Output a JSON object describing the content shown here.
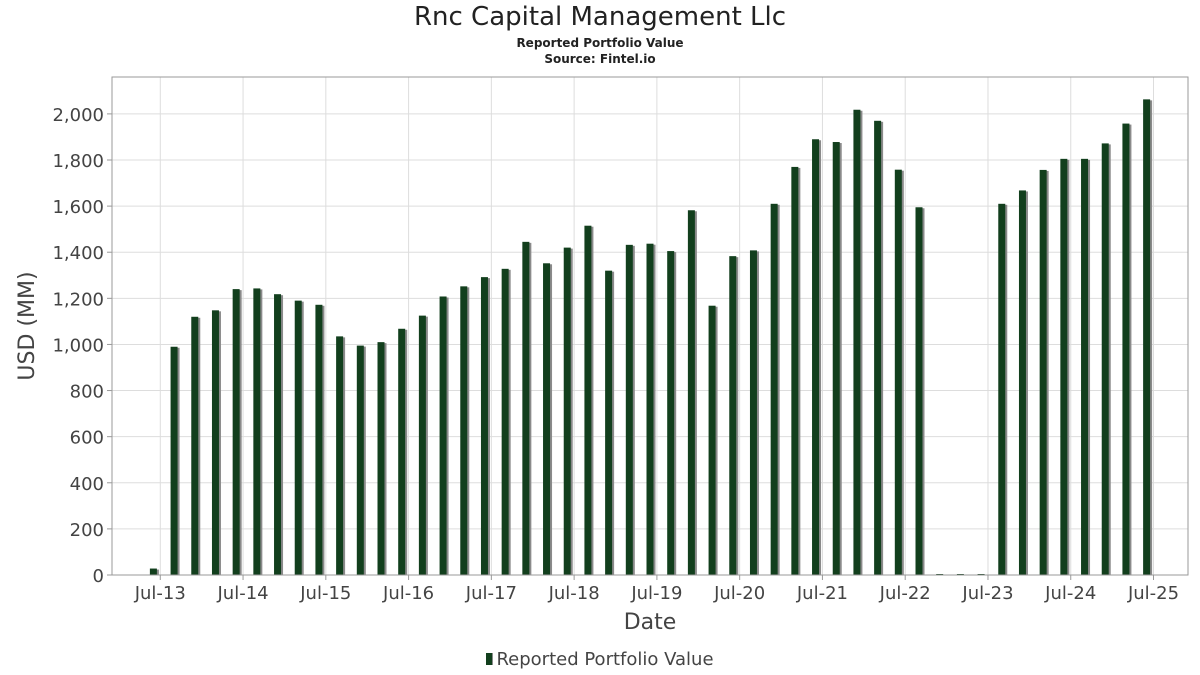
{
  "chart_data": {
    "type": "bar",
    "title": "Rnc Capital Management Llc",
    "subtitle": [
      "Reported Portfolio Value",
      "Source: Fintel.io"
    ],
    "xlabel": "Date",
    "ylabel": "USD (MM)",
    "ylim": [
      0,
      2160
    ],
    "yticks": [
      "0",
      "200",
      "400",
      "600",
      "800",
      "1,000",
      "1,200",
      "1,400",
      "1,600",
      "1,800",
      "2,000"
    ],
    "ytick_values": [
      0,
      200,
      400,
      600,
      800,
      1000,
      1200,
      1400,
      1600,
      1800,
      2000
    ],
    "xticks": [
      "Jul-13",
      "Jul-14",
      "Jul-15",
      "Jul-16",
      "Jul-17",
      "Jul-18",
      "Jul-19",
      "Jul-20",
      "Jul-21",
      "Jul-22",
      "Jul-23",
      "Jul-24",
      "Jul-25"
    ],
    "xtick_dates": [
      "2013-07",
      "2014-07",
      "2015-07",
      "2016-07",
      "2017-07",
      "2018-07",
      "2019-07",
      "2020-07",
      "2021-07",
      "2022-07",
      "2023-07",
      "2024-07",
      "2025-07"
    ],
    "x_range": [
      "2012-12",
      "2025-12"
    ],
    "grid": true,
    "legend_position": "bottom-center",
    "colors": {
      "bar": "#123f1d",
      "bar_shadow": "#8a8a8a",
      "grid": "#dddddd",
      "frame": "#999999"
    },
    "series": [
      {
        "name": "Reported Portfolio Value",
        "x": [
          "2013-06",
          "2013-09",
          "2013-12",
          "2014-03",
          "2014-06",
          "2014-09",
          "2014-12",
          "2015-03",
          "2015-06",
          "2015-09",
          "2015-12",
          "2016-03",
          "2016-06",
          "2016-09",
          "2016-12",
          "2017-03",
          "2017-06",
          "2017-09",
          "2017-12",
          "2018-03",
          "2018-06",
          "2018-09",
          "2018-12",
          "2019-03",
          "2019-06",
          "2019-09",
          "2019-12",
          "2020-03",
          "2020-06",
          "2020-09",
          "2020-12",
          "2021-03",
          "2021-06",
          "2021-09",
          "2021-12",
          "2022-03",
          "2022-06",
          "2022-09",
          "2022-12",
          "2023-03",
          "2023-06",
          "2023-09",
          "2023-12",
          "2024-03",
          "2024-06",
          "2024-09",
          "2024-12",
          "2025-03",
          "2025-06"
        ],
        "values": [
          28,
          990,
          1120,
          1148,
          1240,
          1243,
          1218,
          1190,
          1172,
          1035,
          995,
          1010,
          1068,
          1125,
          1208,
          1252,
          1292,
          1328,
          1445,
          1352,
          1420,
          1515,
          1320,
          1432,
          1437,
          1405,
          1582,
          1168,
          1383,
          1408,
          1610,
          1770,
          1890,
          1878,
          2018,
          1970,
          1758,
          1595,
          2,
          2,
          2,
          1610,
          1668,
          1757,
          1805,
          1805,
          1872,
          1958,
          2063
        ]
      }
    ]
  }
}
